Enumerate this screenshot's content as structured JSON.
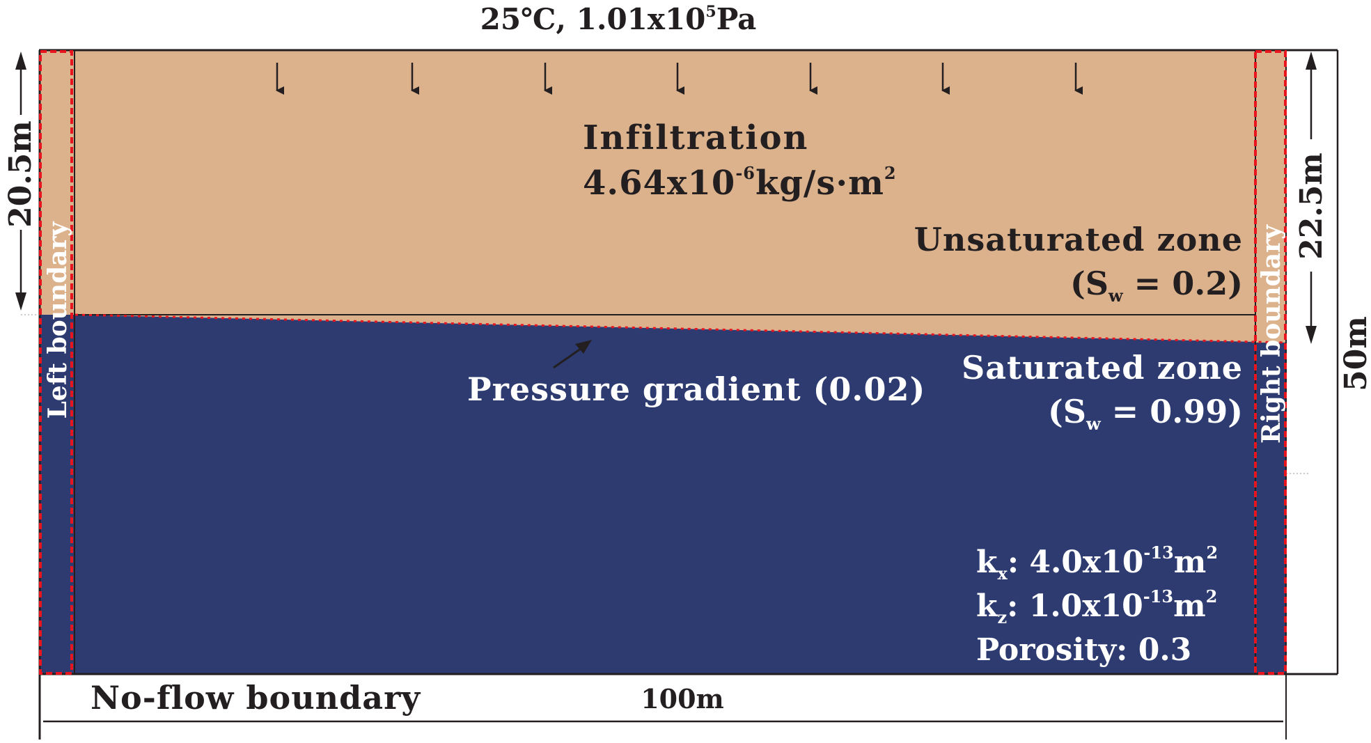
{
  "top_condition": {
    "main": "25℃, 1.01x10",
    "sup": "5",
    "tail": "Pa"
  },
  "infiltration": {
    "title": "Infiltration",
    "value_main": "4.64x10",
    "value_sup": "-6",
    "value_unit": "kg/s·m",
    "value_unit_sup": "2"
  },
  "unsaturated_zone": {
    "label": "Unsaturated zone",
    "sw_open": "(S",
    "sw_sub": "w",
    "sw_value": " = 0.2)"
  },
  "saturated_zone": {
    "label": "Saturated zone",
    "sw_open": "(S",
    "sw_sub": "w",
    "sw_value": " = 0.99)"
  },
  "pressure_gradient": {
    "label": "Pressure gradient (0.02)"
  },
  "properties": {
    "kx_k": "k",
    "kx_sub": "x",
    "kx_main": ": 4.0x10",
    "kx_sup": "-13",
    "kx_unit": "m",
    "kx_unit_sup": "2",
    "kz_k": "k",
    "kz_sub": "z",
    "kz_main": ": 1.0x10",
    "kz_sup": "-13",
    "kz_unit": "m",
    "kz_unit_sup": "2",
    "porosity": "Porosity: 0.3"
  },
  "boundaries": {
    "left": "Left boundary",
    "right": "Right boundary",
    "bottom": "No-flow boundary"
  },
  "dimensions": {
    "left_height": "20.5m",
    "right_height": "22.5m",
    "total_height": "50m",
    "width": "100m"
  },
  "colors": {
    "unsaturated": "#dcb28d",
    "saturated": "#2d3b70",
    "boundary_dash": "#e8141e",
    "text_dark": "#231f20",
    "text_light": "#ffffff"
  }
}
